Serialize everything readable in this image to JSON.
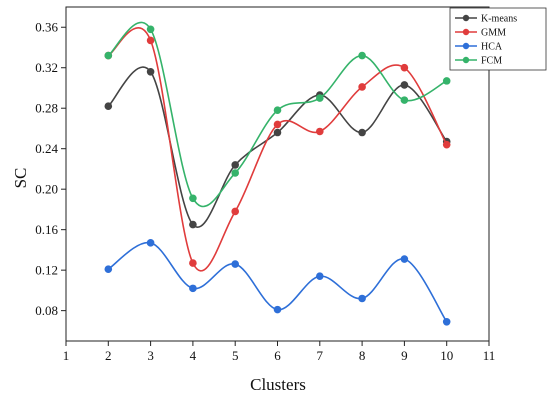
{
  "chart_data": {
    "type": "line",
    "xlabel": "Clusters",
    "ylabel": "SC",
    "xlim": [
      1,
      11
    ],
    "ylim": [
      0.05,
      0.38
    ],
    "x_ticks": [
      "1",
      "2",
      "3",
      "4",
      "5",
      "6",
      "7",
      "8",
      "9",
      "10",
      "11"
    ],
    "y_ticks": [
      "0.08",
      "0.12",
      "0.16",
      "0.20",
      "0.24",
      "0.28",
      "0.32",
      "0.36"
    ],
    "x": [
      2,
      3,
      4,
      5,
      6,
      7,
      8,
      9,
      10
    ],
    "grid": false,
    "legend_position": "top-right",
    "smooth": true,
    "series": [
      {
        "name": "K-means",
        "color": "#444444",
        "values": [
          0.282,
          0.316,
          0.165,
          0.224,
          0.256,
          0.293,
          0.256,
          0.303,
          0.247
        ]
      },
      {
        "name": "GMM",
        "color": "#e03c3c",
        "values": [
          0.332,
          0.347,
          0.127,
          0.178,
          0.264,
          0.257,
          0.301,
          0.32,
          0.244
        ]
      },
      {
        "name": "HCA",
        "color": "#2e6fd8",
        "values": [
          0.121,
          0.147,
          0.102,
          0.126,
          0.081,
          0.114,
          0.092,
          0.131,
          0.069
        ]
      },
      {
        "name": "FCM",
        "color": "#35b36a",
        "values": [
          0.332,
          0.358,
          0.191,
          0.216,
          0.278,
          0.29,
          0.332,
          0.288,
          0.307
        ]
      }
    ]
  }
}
